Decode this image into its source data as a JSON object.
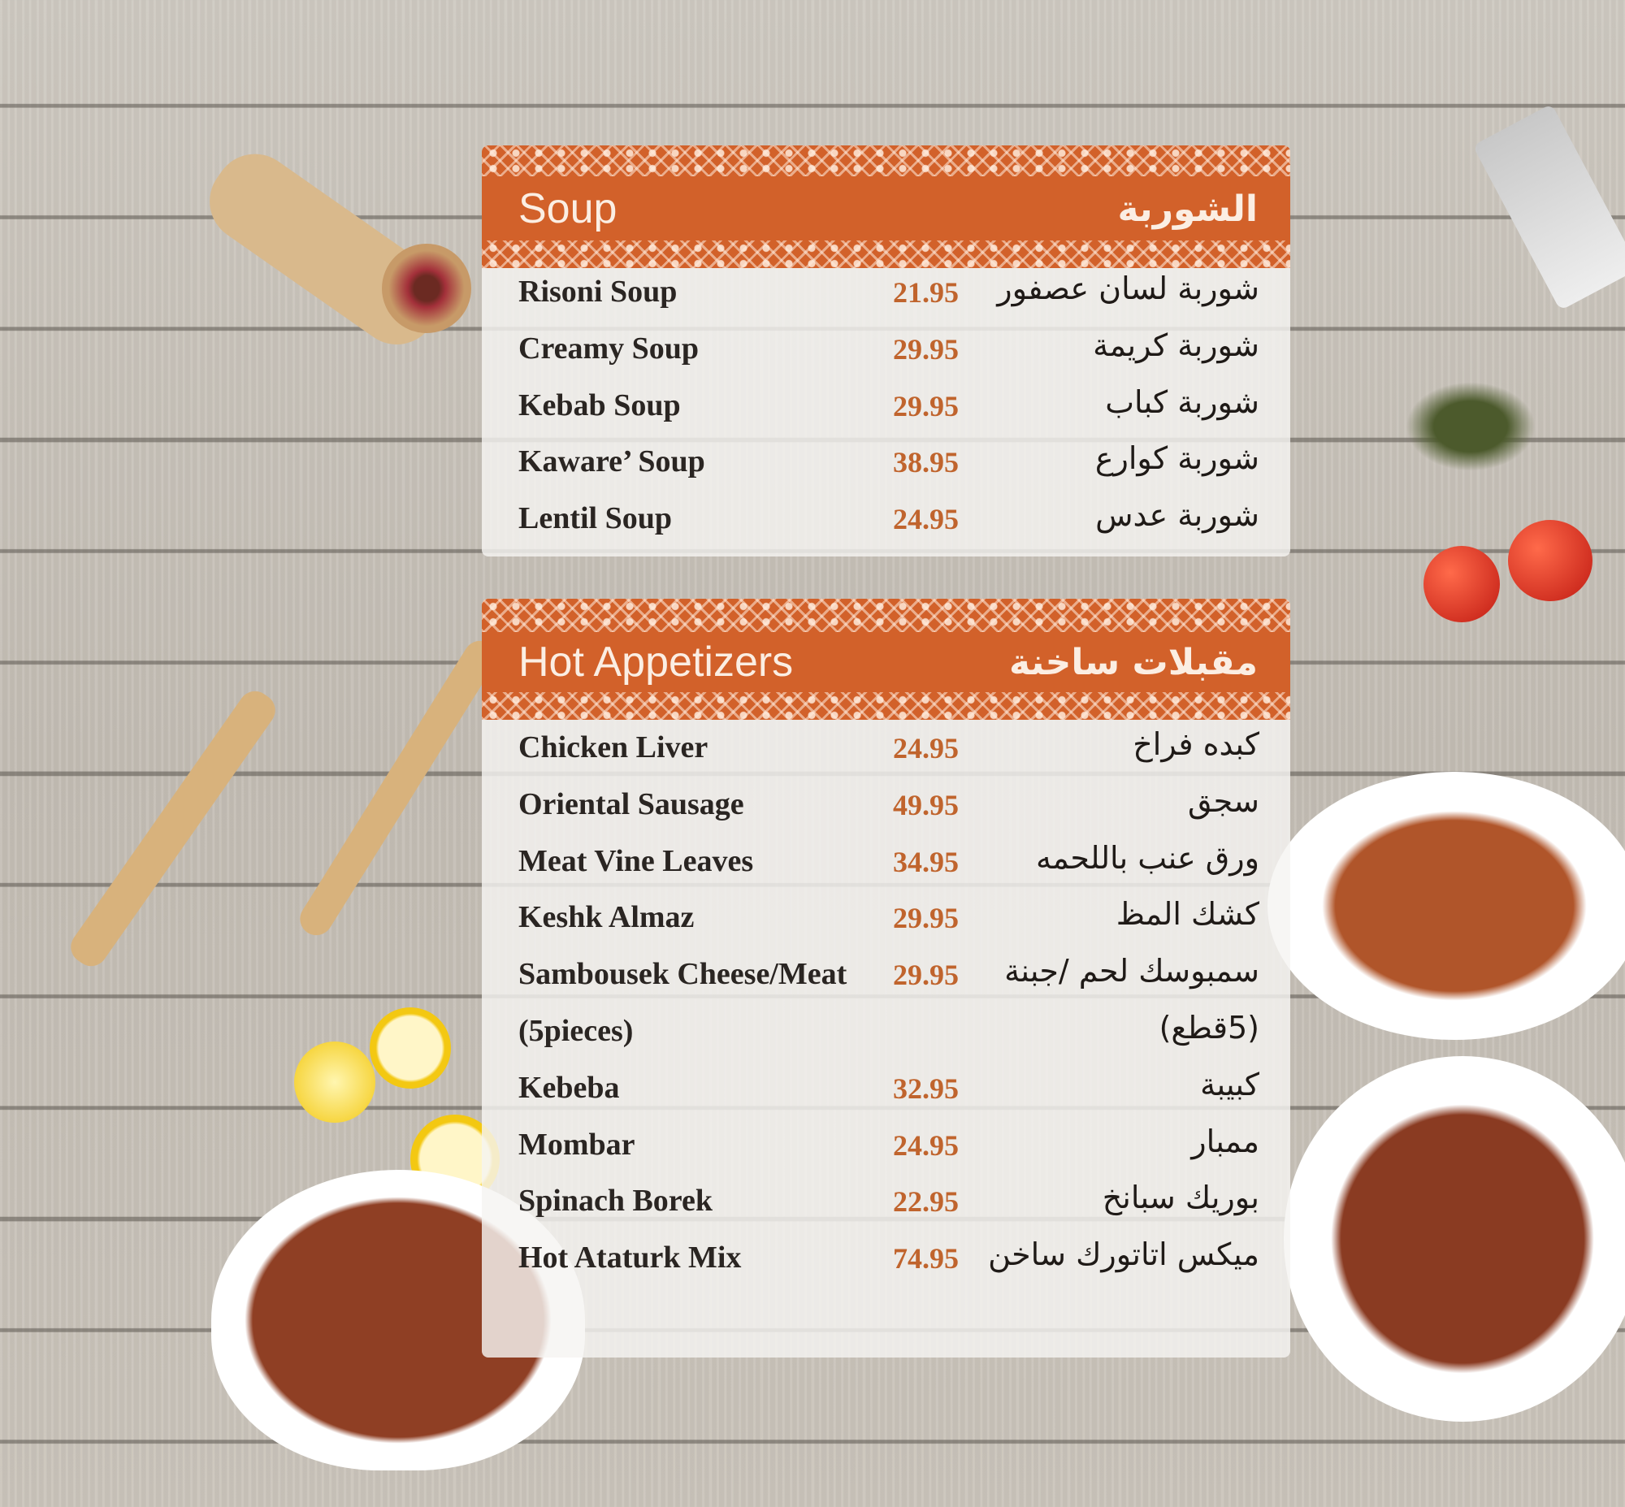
{
  "colors": {
    "accent": "#d2612a",
    "price": "#c0642d",
    "text": "#2a2522"
  },
  "sections": [
    {
      "title_en": "Soup",
      "title_ar": "الشوربة",
      "items": [
        {
          "name": "Risoni Soup",
          "price": "21.95",
          "name_ar": "شوربة لسان عصفور"
        },
        {
          "name": "Creamy Soup",
          "price": "29.95",
          "name_ar": "شوربة كريمة"
        },
        {
          "name": "Kebab Soup",
          "price": "29.95",
          "name_ar": "شوربة كباب"
        },
        {
          "name": "Kaware’ Soup",
          "price": "38.95",
          "name_ar": "شوربة كوارع"
        },
        {
          "name": "Lentil Soup",
          "price": "24.95",
          "name_ar": "شوربة عدس"
        }
      ]
    },
    {
      "title_en": "Hot Appetizers",
      "title_ar": "مقبلات ساخنة",
      "items": [
        {
          "name": "Chicken Liver",
          "price": "24.95",
          "name_ar": "كبده فراخ"
        },
        {
          "name": "Oriental Sausage",
          "price": "49.95",
          "name_ar": "سجق"
        },
        {
          "name": "Meat Vine Leaves",
          "price": "34.95",
          "name_ar": "ورق عنب باللحمه"
        },
        {
          "name": "Keshk Almaz",
          "price": "29.95",
          "name_ar": "كشك المظ"
        },
        {
          "name": "Sambousek Cheese/Meat",
          "price": "29.95",
          "name_ar": "سمبوسك لحم /جبنة"
        },
        {
          "name": "(5pieces)",
          "price": "",
          "name_ar": "(5قطع)"
        },
        {
          "name": "Kebeba",
          "price": "32.95",
          "name_ar": "كبيبة"
        },
        {
          "name": "Mombar",
          "price": "24.95",
          "name_ar": "ممبار"
        },
        {
          "name": "Spinach Borek",
          "price": "22.95",
          "name_ar": "بوريك سبانخ"
        },
        {
          "name": "Hot Ataturk Mix",
          "price": "74.95",
          "name_ar": "ميكس اتاتورك ساخن"
        }
      ]
    }
  ]
}
